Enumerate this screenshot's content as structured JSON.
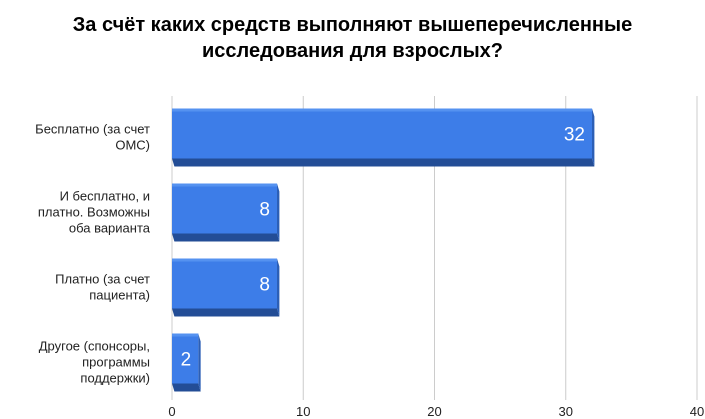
{
  "chart_data": {
    "type": "bar",
    "orientation": "horizontal",
    "style": "3d",
    "title_lines": [
      "За счёт каких средств выполняют вышеперечисленные",
      "исследования для взрослых?"
    ],
    "categories": [
      [
        "Бесплатно (за счет",
        "ОМС)"
      ],
      [
        "И бесплатно, и",
        "платно. Возможны",
        "оба варианта"
      ],
      [
        "Платно (за счет",
        "пациента)"
      ],
      [
        "Другое (спонсоры,",
        "программы",
        "поддержки)"
      ]
    ],
    "values": [
      32,
      8,
      8,
      2
    ],
    "xlim": [
      0,
      40
    ],
    "xticks": [
      0,
      10,
      20,
      30,
      40
    ],
    "xlabel": "",
    "ylabel": "",
    "grid": true,
    "legend": "none",
    "bar_color": "#3d7de8",
    "bar_top_color": "#5592f0",
    "bar_side_color": "#2c5fb6",
    "bar_bottom_color": "#234d96",
    "data_label_color": "#ffffff",
    "grid_color": "#cccccc",
    "text_color": "#222222"
  }
}
